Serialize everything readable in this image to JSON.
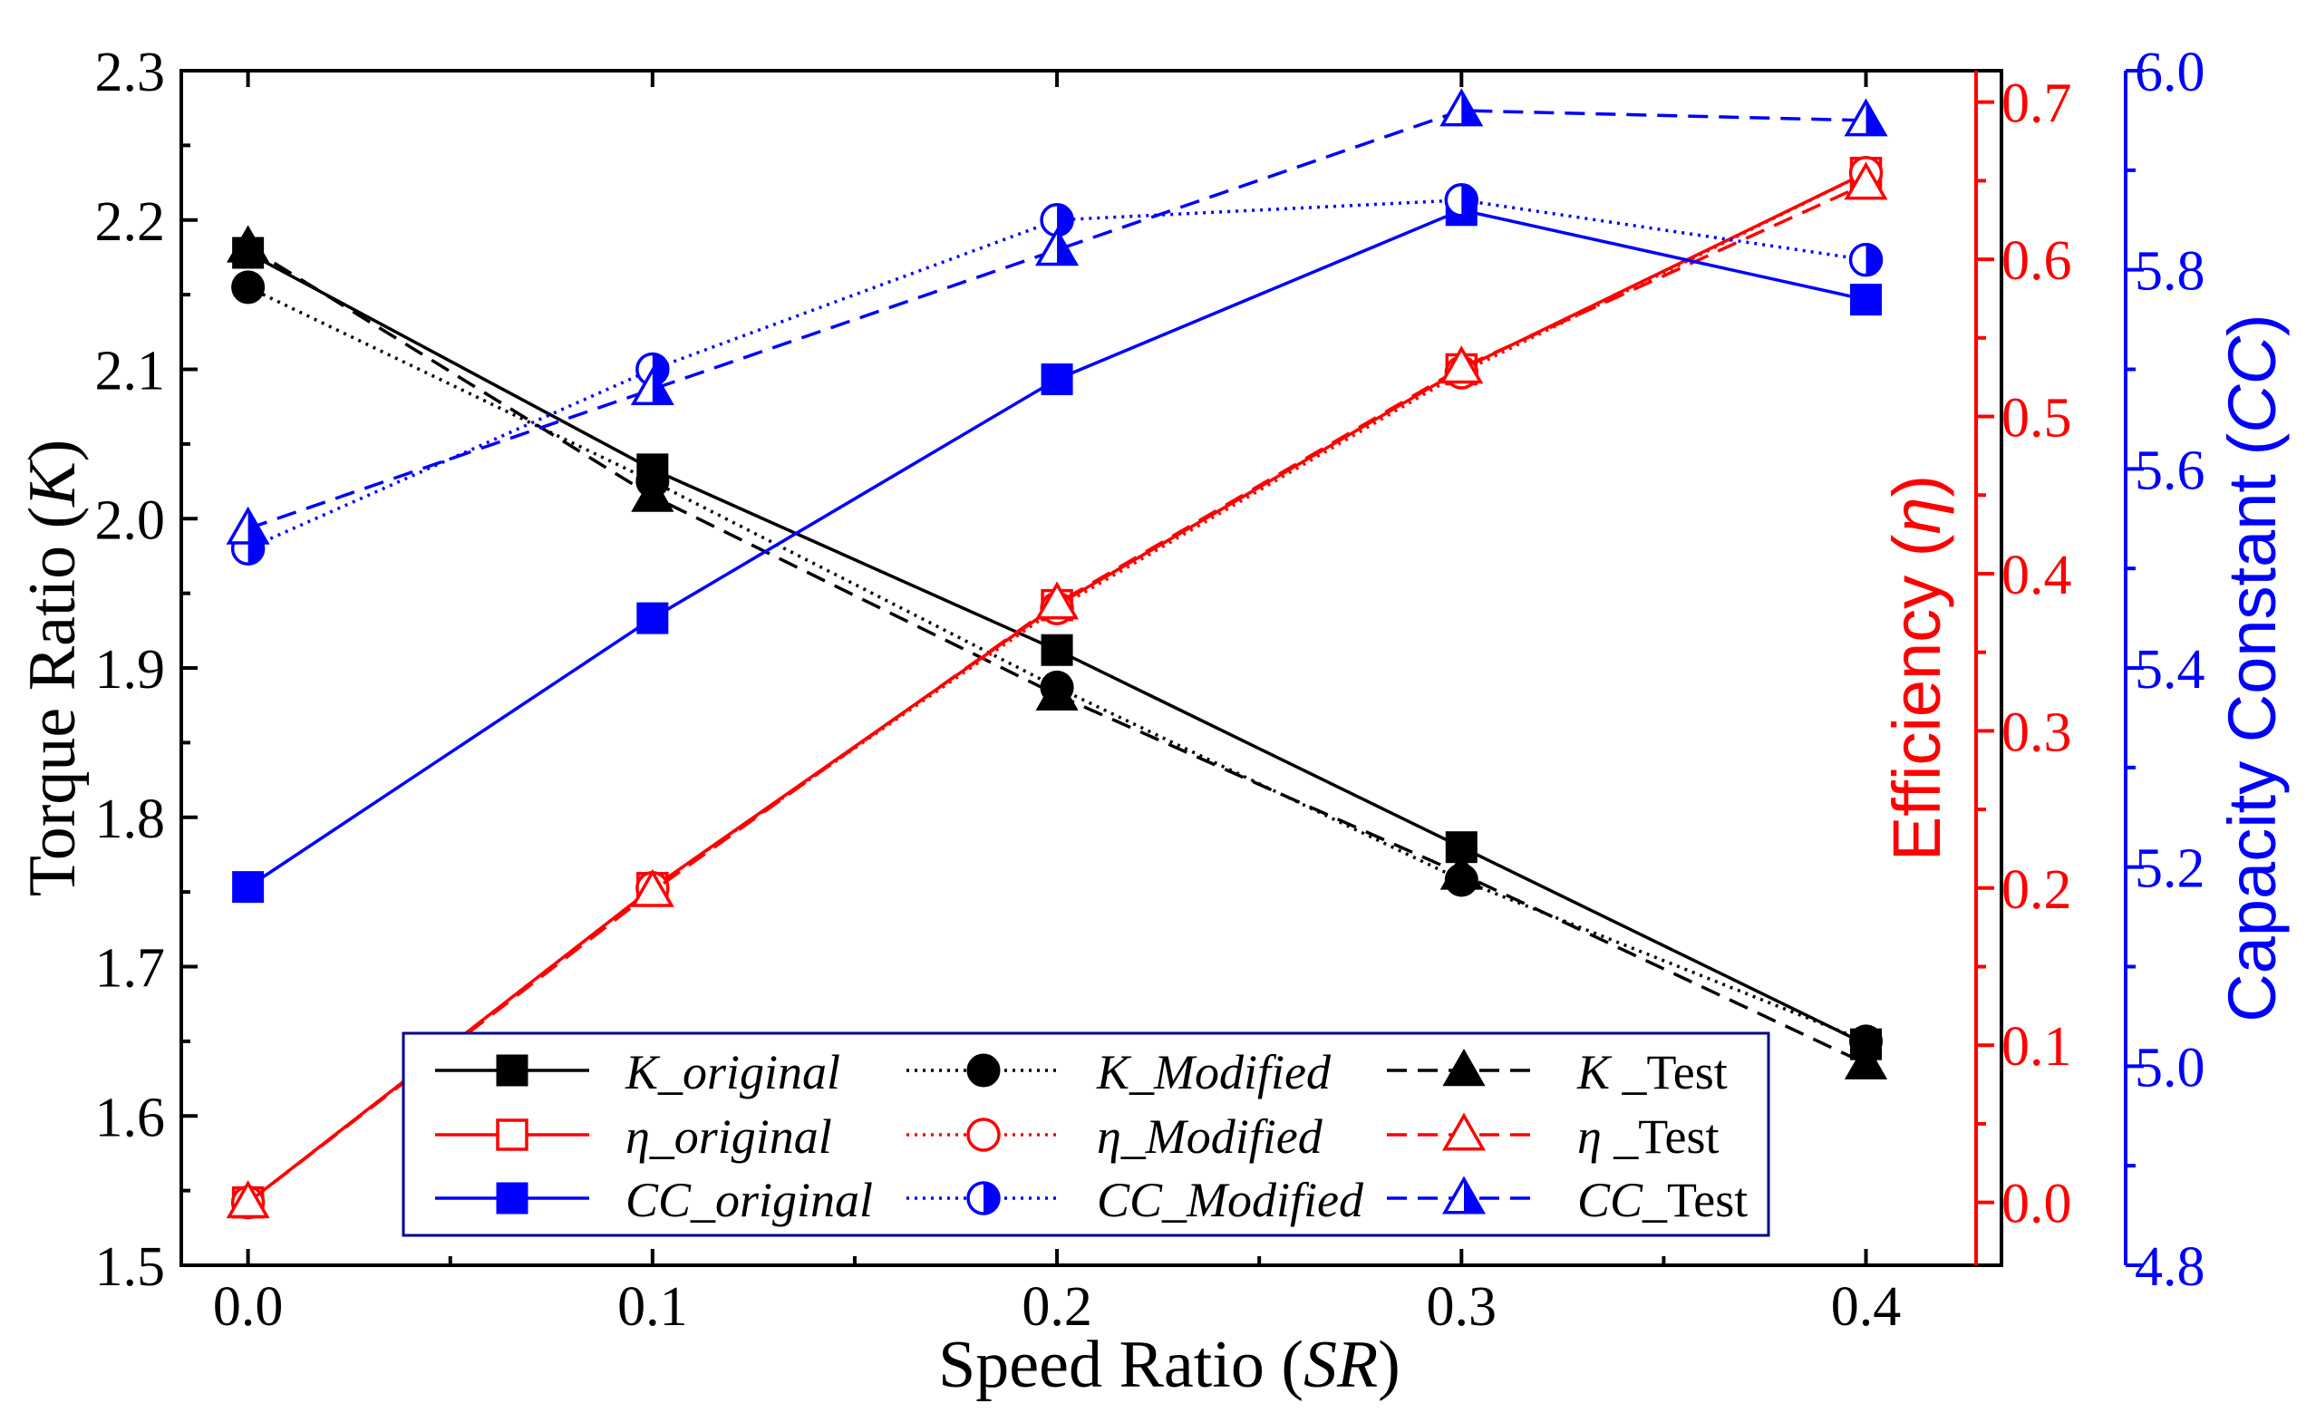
{
  "chart_data": {
    "type": "line",
    "x": [
      0.0,
      0.1,
      0.2,
      0.3,
      0.4
    ],
    "xlabel": {
      "prefix": "Speed Ratio (",
      "italic": "SR",
      "suffix": ")"
    },
    "xlim": [
      -0.0165,
      0.4335
    ],
    "xticks": [
      0.0,
      0.1,
      0.2,
      0.3,
      0.4
    ],
    "xtick_labels": [
      "0.0",
      "0.1",
      "0.2",
      "0.3",
      "0.4"
    ],
    "axes": {
      "K": {
        "label": {
          "prefix": "Torque Ratio (",
          "italic": "K",
          "suffix": ")"
        },
        "ylim": [
          1.5,
          2.3
        ],
        "ticks": [
          1.5,
          1.6,
          1.7,
          1.8,
          1.9,
          2.0,
          2.1,
          2.2,
          2.3
        ],
        "tick_labels": [
          "1.5",
          "1.6",
          "1.7",
          "1.8",
          "1.9",
          "2.0",
          "2.1",
          "2.2",
          "2.3"
        ],
        "color": "#000000"
      },
      "eta": {
        "label": {
          "prefix": "Efficiency (",
          "italic": "η",
          "suffix": ")"
        },
        "ylim": [
          -0.04,
          0.72
        ],
        "ticks": [
          0.0,
          0.1,
          0.2,
          0.3,
          0.4,
          0.5,
          0.6,
          0.7
        ],
        "tick_labels": [
          "0.0",
          "0.1",
          "0.2",
          "0.3",
          "0.4",
          "0.5",
          "0.6",
          "0.7"
        ],
        "color": "#ff0000"
      },
      "CC": {
        "label": {
          "prefix": "Capacity Constant (",
          "italic": "CC",
          "suffix": ")"
        },
        "ylim": [
          4.8,
          6.0
        ],
        "ticks": [
          4.8,
          5.0,
          5.2,
          5.4,
          5.6,
          5.8,
          6.0
        ],
        "tick_labels": [
          "4.8",
          "5.0",
          "5.2",
          "5.4",
          "5.6",
          "5.8",
          "6.0"
        ],
        "color": "#0000ff"
      }
    },
    "series": [
      {
        "name": "K_original",
        "label_italic": "K_original",
        "label_normal": "",
        "axis": "K",
        "values": [
          2.178,
          2.033,
          1.912,
          1.78,
          1.648
        ],
        "color": "#000000",
        "dash": "solid",
        "marker": "square-filled"
      },
      {
        "name": "K_Modified",
        "label_italic": "K_Modified",
        "label_normal": "",
        "axis": "K",
        "values": [
          2.155,
          2.025,
          1.887,
          1.758,
          1.65
        ],
        "color": "#000000",
        "dash": "dotted",
        "marker": "circle-filled"
      },
      {
        "name": "K _Test",
        "label_italic": "K",
        "label_normal": " _Test",
        "axis": "K",
        "values": [
          2.182,
          2.015,
          1.882,
          1.762,
          1.635
        ],
        "color": "#000000",
        "dash": "dashed",
        "marker": "triangle-filled"
      },
      {
        "name": "η_original",
        "label_italic": "η_original",
        "label_normal": "",
        "axis": "eta",
        "values": [
          0.0,
          0.2,
          0.38,
          0.53,
          0.655
        ],
        "color": "#ff0000",
        "dash": "solid",
        "marker": "square-open"
      },
      {
        "name": "η_Modified",
        "label_italic": "η_Modified",
        "label_normal": "",
        "axis": "eta",
        "values": [
          0.0,
          0.2,
          0.378,
          0.528,
          0.655
        ],
        "color": "#ff0000",
        "dash": "dotted",
        "marker": "circle-open"
      },
      {
        "name": "η _Test",
        "label_italic": "η",
        "label_normal": " _Test",
        "axis": "eta",
        "values": [
          0.0,
          0.198,
          0.381,
          0.531,
          0.648
        ],
        "color": "#ff0000",
        "dash": "dashed",
        "marker": "triangle-open"
      },
      {
        "name": "CC_original",
        "label_italic": "CC_original",
        "label_normal": "",
        "axis": "CC",
        "values": [
          5.18,
          5.45,
          5.69,
          5.86,
          5.77
        ],
        "color": "#0000ff",
        "dash": "solid",
        "marker": "square-filled"
      },
      {
        "name": "CC_Modified",
        "label_italic": "CC_Modified",
        "label_normal": "",
        "axis": "CC",
        "values": [
          5.52,
          5.7,
          5.85,
          5.87,
          5.81
        ],
        "color": "#0000ff",
        "dash": "dotted",
        "marker": "circle-half"
      },
      {
        "name": "CC_Test",
        "label_italic": "CC",
        "label_normal": "_Test",
        "axis": "CC",
        "values": [
          5.54,
          5.68,
          5.82,
          5.96,
          5.95
        ],
        "color": "#0000ff",
        "dash": "dashed",
        "marker": "triangle-half"
      }
    ],
    "legend": {
      "position": "bottom-center",
      "columns": 3,
      "border_color": "#00008b"
    }
  }
}
